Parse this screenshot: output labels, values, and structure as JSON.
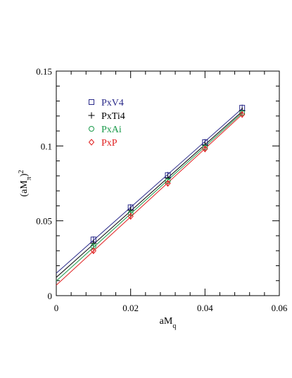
{
  "chart_data": {
    "type": "scatter",
    "xlabel": "aM_q",
    "ylabel": "(aM_π)^2",
    "xlim": [
      0,
      0.06
    ],
    "ylim": [
      0,
      0.15
    ],
    "x_ticks": [
      "0",
      "0.02",
      "0.04",
      "0.06"
    ],
    "y_ticks": [
      "0",
      "0.05",
      "0.1",
      "0.15"
    ],
    "legend_position": "top-left",
    "x": [
      0.01,
      0.02,
      0.03,
      0.04,
      0.05
    ],
    "series": [
      {
        "name": "PxV4",
        "color": "#2b2b8a",
        "marker": "square",
        "values": [
          0.0375,
          0.059,
          0.0805,
          0.1025,
          0.1255
        ],
        "fit": [
          0.015,
          0.125
        ]
      },
      {
        "name": "PxTi4",
        "color": "#000000",
        "marker": "plus",
        "values": [
          0.035,
          0.057,
          0.0785,
          0.1005,
          0.1235
        ],
        "fit": [
          0.0122,
          0.123
        ]
      },
      {
        "name": "PxAi",
        "color": "#1a9a4a",
        "marker": "circle",
        "values": [
          0.033,
          0.055,
          0.0765,
          0.099,
          0.122
        ],
        "fit": [
          0.0098,
          0.122
        ]
      },
      {
        "name": "PxP",
        "color": "#e02020",
        "marker": "diamond",
        "values": [
          0.03,
          0.053,
          0.075,
          0.098,
          0.121
        ],
        "fit": [
          0.007,
          0.121
        ]
      }
    ]
  }
}
